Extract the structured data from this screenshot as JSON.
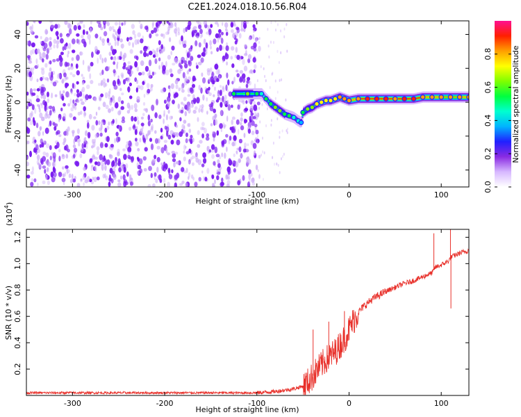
{
  "title": "C2E1.2024.018.10.56.R04",
  "colors": {
    "snr_line": "#e8302a",
    "speckle": "#7a1cf0",
    "speckle_light": "#c9a6f7"
  },
  "chart_data": [
    {
      "type": "heatmap",
      "xlabel": "Height of straight line (km)",
      "ylabel": "Frequency (Hz)",
      "xlim": [
        -350,
        130
      ],
      "ylim": [
        -50,
        48
      ],
      "xticks": [
        -300,
        -200,
        -100,
        0,
        100
      ],
      "yticks": [
        -40,
        -20,
        0,
        20,
        40
      ],
      "xtick_labels": [
        "-300",
        "-200",
        "-100",
        "0",
        "100"
      ],
      "ytick_labels": [
        "-40",
        "-20",
        "0",
        "20",
        "40"
      ],
      "noise_region_x": [
        -350,
        -100
      ],
      "trace": {
        "x": [
          -125,
          -110,
          -100,
          -95,
          -90,
          -85,
          -80,
          -75,
          -70,
          -65,
          -60,
          -55,
          -52,
          -50,
          -45,
          -40,
          -35,
          -30,
          -25,
          -20,
          -15,
          -10,
          -5,
          0,
          10,
          20,
          30,
          40,
          50,
          60,
          70,
          80,
          90,
          100,
          110,
          120,
          130
        ],
        "y": [
          5,
          5,
          5,
          5,
          2,
          -1,
          -3,
          -5,
          -7,
          -8,
          -9,
          -11,
          -12,
          -6,
          -4,
          -3,
          -1,
          0,
          1,
          1,
          2,
          3,
          2,
          1,
          2,
          2,
          2,
          2,
          2,
          2,
          2,
          3,
          3,
          3,
          3,
          3,
          3
        ],
        "amplitude": [
          0.55,
          0.6,
          0.5,
          0.45,
          0.5,
          0.55,
          0.6,
          0.6,
          0.55,
          0.5,
          0.45,
          0.45,
          0.4,
          0.55,
          0.6,
          0.65,
          0.7,
          0.75,
          0.75,
          0.7,
          0.75,
          0.8,
          0.8,
          0.85,
          0.85,
          0.9,
          0.9,
          0.9,
          0.85,
          0.9,
          0.9,
          0.85,
          0.85,
          0.85,
          0.8,
          0.85,
          0.85
        ]
      }
    },
    {
      "type": "colorbar",
      "label": "Normalized spectral amplitude",
      "ylim": [
        0,
        1
      ],
      "ticks": [
        0,
        0.2,
        0.4,
        0.6,
        0.8
      ],
      "tick_labels": [
        "0.0",
        "0.2",
        "0.4",
        "0.6",
        "0.8"
      ],
      "colormap": [
        "#ffffff",
        "#d7b8ff",
        "#8a2be2",
        "#2020ff",
        "#00b4ff",
        "#00ffd0",
        "#00ff40",
        "#7fff00",
        "#ffff00",
        "#ffa000",
        "#ff2000",
        "#ff1090"
      ]
    },
    {
      "type": "line",
      "xlabel": "Height of straight line (km)",
      "ylabel": "SNR (10 * v/v)",
      "y_exponent_label": "(x10",
      "y_exponent": "4",
      "y_exponent_close": ")",
      "xlim": [
        -350,
        130
      ],
      "ylim": [
        0,
        1.26
      ],
      "xticks": [
        -300,
        -200,
        -100,
        0,
        100
      ],
      "yticks": [
        0.2,
        0.4,
        0.6,
        0.8,
        1.0,
        1.2
      ],
      "xtick_labels": [
        "-300",
        "-200",
        "-100",
        "0",
        "100"
      ],
      "ytick_labels": [
        "0.2",
        "0.4",
        "0.6",
        "0.8",
        "1.0",
        "1.2"
      ],
      "series": [
        {
          "name": "SNR",
          "x": [
            -350,
            -300,
            -250,
            -200,
            -150,
            -120,
            -100,
            -80,
            -70,
            -60,
            -50,
            -45,
            -40,
            -35,
            -30,
            -25,
            -20,
            -15,
            -10,
            -5,
            0,
            5,
            10,
            15,
            20,
            25,
            30,
            35,
            40,
            50,
            60,
            70,
            80,
            90,
            92,
            93,
            100,
            108,
            110,
            111,
            120,
            130
          ],
          "y": [
            0.02,
            0.02,
            0.02,
            0.02,
            0.02,
            0.02,
            0.02,
            0.03,
            0.04,
            0.05,
            0.07,
            0.1,
            0.14,
            0.19,
            0.23,
            0.27,
            0.3,
            0.33,
            0.38,
            0.43,
            0.5,
            0.57,
            0.63,
            0.67,
            0.7,
            0.73,
            0.75,
            0.77,
            0.79,
            0.82,
            0.85,
            0.87,
            0.9,
            0.93,
            0.95,
            0.97,
            0.99,
            1.02,
            1.04,
            1.05,
            1.08,
            1.1
          ]
        }
      ],
      "spikes": [
        {
          "x": -39,
          "y": 0.5
        },
        {
          "x": -22,
          "y": 0.56
        },
        {
          "x": -5,
          "y": 0.64
        },
        {
          "x": 92,
          "y": 1.23
        },
        {
          "x": 110,
          "y": 1.26
        },
        {
          "x": 110.5,
          "y": 0.66
        }
      ]
    }
  ]
}
